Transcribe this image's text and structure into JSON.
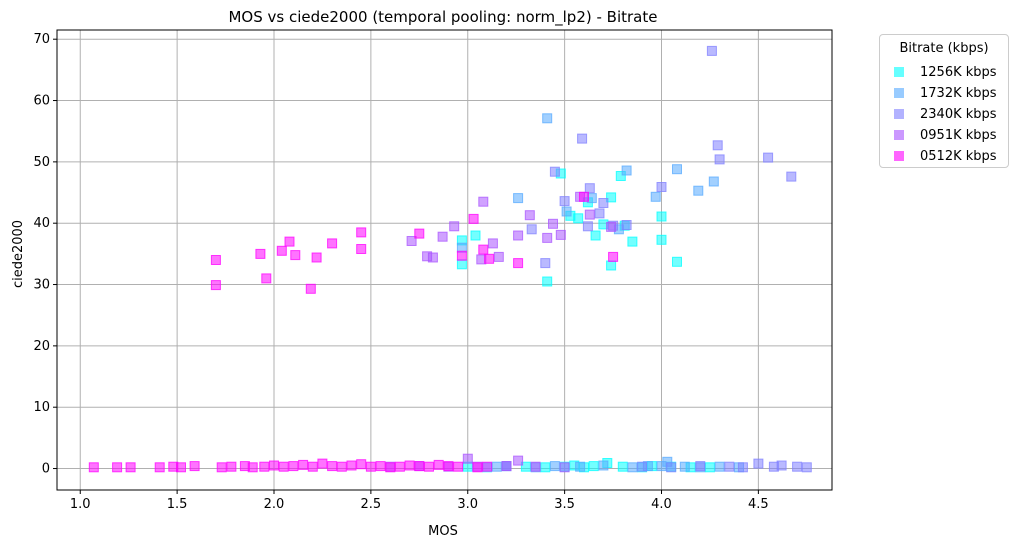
{
  "chart_data": {
    "type": "scatter",
    "title": "MOS vs ciede2000 (temporal pooling: norm_lp2) - Bitrate",
    "xlabel": "MOS",
    "ylabel": "ciede2000",
    "xlim": [
      0.88,
      4.88
    ],
    "ylim": [
      -3.5,
      71.5
    ],
    "xticks": [
      "1.0",
      "1.5",
      "2.0",
      "2.5",
      "3.0",
      "3.5",
      "4.0",
      "4.5"
    ],
    "yticks": [
      "0",
      "10",
      "20",
      "30",
      "40",
      "50",
      "60",
      "70"
    ],
    "grid": true,
    "marker": "square",
    "legend": {
      "title": "Bitrate (kbps)",
      "placement": "outside-top-right"
    },
    "series": [
      {
        "name": "1256K kbps",
        "color": "#00ffff",
        "x": [
          2.97,
          2.97,
          3.04,
          3.41,
          3.48,
          3.53,
          3.57,
          3.62,
          3.66,
          3.7,
          3.74,
          3.74,
          3.79,
          3.81,
          3.85,
          4.0,
          4.0,
          4.08,
          3.0,
          3.1,
          3.2,
          3.3,
          3.4,
          3.5,
          3.55,
          3.6,
          3.65,
          3.72,
          3.8,
          3.9,
          3.95,
          4.05,
          4.15,
          4.25
        ],
        "y": [
          33.3,
          37.2,
          38.0,
          30.5,
          48.1,
          41.2,
          40.8,
          43.4,
          38.0,
          39.8,
          33.1,
          44.2,
          47.7,
          39.6,
          37.0,
          41.1,
          37.3,
          33.7,
          0.3,
          0.2,
          0.4,
          0.3,
          0.2,
          0.3,
          0.5,
          0.2,
          0.4,
          0.9,
          0.3,
          0.2,
          0.4,
          0.3,
          0.2,
          0.2
        ]
      },
      {
        "name": "1732K kbps",
        "color": "#55aaff",
        "x": [
          2.97,
          3.26,
          3.41,
          3.51,
          3.64,
          3.78,
          3.82,
          3.97,
          4.0,
          4.08,
          4.19,
          4.27,
          3.15,
          3.35,
          3.45,
          3.58,
          3.7,
          3.85,
          3.93,
          4.03,
          4.12,
          4.2,
          4.3,
          4.4
        ],
        "y": [
          36.0,
          44.1,
          57.1,
          41.9,
          44.1,
          39.0,
          48.6,
          44.3,
          0.4,
          48.8,
          45.3,
          46.8,
          0.3,
          0.2,
          0.4,
          0.3,
          0.5,
          0.2,
          0.4,
          1.1,
          0.3,
          0.2,
          0.3,
          0.2
        ]
      },
      {
        "name": "2340K kbps",
        "color": "#8080ff",
        "x": [
          3.2,
          3.33,
          3.4,
          3.45,
          3.5,
          3.59,
          3.62,
          3.63,
          3.68,
          3.7,
          3.75,
          3.82,
          4.0,
          4.26,
          4.29,
          4.3,
          4.55,
          4.67,
          3.9,
          4.05,
          4.2,
          4.35,
          4.42,
          4.5,
          4.58,
          4.62,
          4.7,
          4.75
        ],
        "y": [
          0.4,
          39.0,
          33.5,
          48.4,
          43.6,
          53.8,
          39.5,
          45.7,
          41.6,
          43.3,
          39.6,
          39.7,
          45.9,
          68.1,
          52.7,
          50.4,
          50.7,
          47.6,
          0.3,
          0.2,
          0.4,
          0.3,
          0.2,
          0.8,
          0.3,
          0.5,
          0.3,
          0.2
        ]
      },
      {
        "name": "0951K kbps",
        "color": "#aa55ff",
        "x": [
          2.71,
          2.79,
          2.82,
          2.87,
          2.93,
          3.07,
          3.08,
          3.13,
          3.16,
          3.26,
          3.32,
          3.41,
          3.44,
          3.48,
          3.58,
          3.63,
          3.74,
          2.6,
          2.75,
          2.9,
          3.0,
          3.05,
          3.2,
          3.26,
          3.35,
          3.5
        ],
        "y": [
          37.1,
          34.6,
          34.4,
          37.8,
          39.5,
          34.1,
          43.5,
          36.7,
          34.5,
          38.0,
          41.3,
          37.6,
          39.9,
          38.1,
          44.3,
          41.4,
          39.4,
          0.3,
          0.4,
          0.3,
          1.6,
          0.3,
          0.4,
          1.3,
          0.3,
          0.2
        ]
      },
      {
        "name": "0512K kbps",
        "color": "#ff00ff",
        "x": [
          1.7,
          1.7,
          1.93,
          1.96,
          2.04,
          2.08,
          2.11,
          2.19,
          2.22,
          2.3,
          2.45,
          2.45,
          2.75,
          2.97,
          3.03,
          3.08,
          3.11,
          3.26,
          3.6,
          3.75,
          1.07,
          1.19,
          1.26,
          1.41,
          1.48,
          1.52,
          1.59,
          1.73,
          1.78,
          1.85,
          1.89,
          1.95,
          2.0,
          2.05,
          2.1,
          2.15,
          2.2,
          2.25,
          2.3,
          2.35,
          2.4,
          2.45,
          2.5,
          2.55,
          2.6,
          2.65,
          2.7,
          2.75,
          2.8,
          2.85,
          2.9,
          2.95,
          3.05,
          3.1
        ],
        "y": [
          34.0,
          29.9,
          35.0,
          31.0,
          35.5,
          37.0,
          34.8,
          29.3,
          34.4,
          36.7,
          38.5,
          35.8,
          38.3,
          34.7,
          40.7,
          35.7,
          34.2,
          33.5,
          44.3,
          34.5,
          0.2,
          0.2,
          0.2,
          0.2,
          0.3,
          0.2,
          0.4,
          0.2,
          0.3,
          0.4,
          0.2,
          0.3,
          0.5,
          0.3,
          0.4,
          0.6,
          0.3,
          0.8,
          0.4,
          0.3,
          0.5,
          0.7,
          0.3,
          0.4,
          0.2,
          0.3,
          0.5,
          0.4,
          0.3,
          0.6,
          0.4,
          0.3,
          0.2,
          0.3
        ]
      }
    ]
  }
}
